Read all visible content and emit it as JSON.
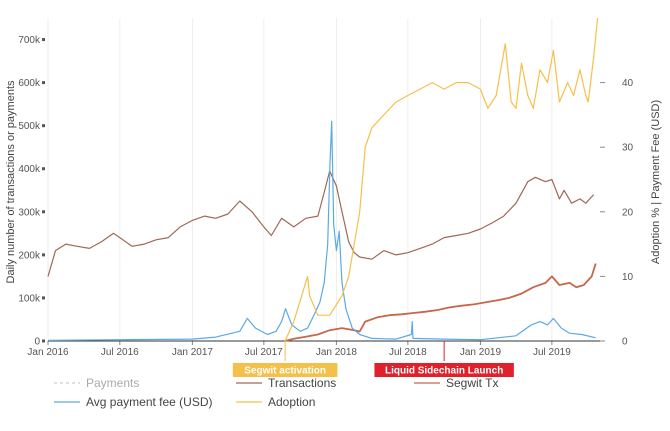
{
  "chart_data": {
    "type": "line",
    "y_left_label": "Daily number of transactions or payments",
    "y_right_label": "Adoption % | Payment Fee (USD)",
    "x_ticks": [
      "Jan 2016",
      "Jul 2016",
      "Jan 2017",
      "Jul 2017",
      "Jan 2018",
      "Jul 2018",
      "Jan 2019",
      "Jul 2019"
    ],
    "x_range": [
      "2016-01-01",
      "2019-10-31"
    ],
    "y_left_ticks": [
      "0",
      "100k",
      "200k",
      "300k",
      "400k",
      "500k",
      "600k",
      "700k"
    ],
    "y_left_range": [
      0,
      750000
    ],
    "y_right_ticks": [
      "0",
      "10",
      "20",
      "30",
      "40"
    ],
    "y_right_range": [
      0,
      50
    ],
    "grid": "vertical",
    "legend_position": "bottom",
    "events": [
      {
        "label": "Segwit activation",
        "date": "2017-08-24",
        "color": "#f5c04a"
      },
      {
        "label": "Liquid Sidechain Launch",
        "date": "2018-10-01",
        "color": "#e0202a"
      }
    ],
    "series": [
      {
        "name": "Payments",
        "axis": "left",
        "color": "#cccccc",
        "style": "dashed",
        "visible": false,
        "points": []
      },
      {
        "name": "Transactions",
        "axis": "left",
        "color": "#a06856",
        "points": [
          [
            "2016-01-01",
            150000
          ],
          [
            "2016-01-20",
            210000
          ],
          [
            "2016-02-15",
            225000
          ],
          [
            "2016-03-15",
            220000
          ],
          [
            "2016-04-15",
            215000
          ],
          [
            "2016-05-15",
            230000
          ],
          [
            "2016-06-15",
            250000
          ],
          [
            "2016-07-01",
            240000
          ],
          [
            "2016-08-01",
            220000
          ],
          [
            "2016-09-01",
            225000
          ],
          [
            "2016-10-01",
            235000
          ],
          [
            "2016-11-01",
            240000
          ],
          [
            "2016-12-01",
            265000
          ],
          [
            "2017-01-01",
            280000
          ],
          [
            "2017-02-01",
            290000
          ],
          [
            "2017-03-01",
            285000
          ],
          [
            "2017-04-01",
            295000
          ],
          [
            "2017-05-01",
            325000
          ],
          [
            "2017-06-01",
            300000
          ],
          [
            "2017-07-01",
            265000
          ],
          [
            "2017-07-20",
            245000
          ],
          [
            "2017-08-15",
            285000
          ],
          [
            "2017-09-15",
            265000
          ],
          [
            "2017-10-15",
            285000
          ],
          [
            "2017-11-15",
            290000
          ],
          [
            "2017-12-01",
            345000
          ],
          [
            "2017-12-15",
            395000
          ],
          [
            "2018-01-01",
            360000
          ],
          [
            "2018-01-15",
            300000
          ],
          [
            "2018-02-01",
            230000
          ],
          [
            "2018-02-15",
            205000
          ],
          [
            "2018-03-01",
            195000
          ],
          [
            "2018-04-01",
            190000
          ],
          [
            "2018-05-01",
            210000
          ],
          [
            "2018-06-01",
            200000
          ],
          [
            "2018-07-01",
            205000
          ],
          [
            "2018-08-01",
            215000
          ],
          [
            "2018-09-01",
            225000
          ],
          [
            "2018-10-01",
            240000
          ],
          [
            "2018-11-01",
            245000
          ],
          [
            "2018-12-01",
            250000
          ],
          [
            "2019-01-01",
            260000
          ],
          [
            "2019-02-01",
            275000
          ],
          [
            "2019-03-01",
            290000
          ],
          [
            "2019-04-01",
            320000
          ],
          [
            "2019-05-01",
            370000
          ],
          [
            "2019-05-20",
            380000
          ],
          [
            "2019-06-15",
            370000
          ],
          [
            "2019-07-01",
            375000
          ],
          [
            "2019-07-20",
            330000
          ],
          [
            "2019-08-01",
            350000
          ],
          [
            "2019-08-20",
            320000
          ],
          [
            "2019-09-10",
            330000
          ],
          [
            "2019-09-25",
            320000
          ],
          [
            "2019-10-15",
            340000
          ]
        ]
      },
      {
        "name": "Segwit Tx",
        "axis": "left",
        "color": "#c6674a",
        "points": [
          [
            "2017-08-24",
            0
          ],
          [
            "2017-09-15",
            5000
          ],
          [
            "2017-10-15",
            10000
          ],
          [
            "2017-11-15",
            15000
          ],
          [
            "2017-12-15",
            25000
          ],
          [
            "2018-01-15",
            30000
          ],
          [
            "2018-02-15",
            25000
          ],
          [
            "2018-03-01",
            22000
          ],
          [
            "2018-03-15",
            45000
          ],
          [
            "2018-04-15",
            55000
          ],
          [
            "2018-05-15",
            60000
          ],
          [
            "2018-06-15",
            62000
          ],
          [
            "2018-07-15",
            65000
          ],
          [
            "2018-08-15",
            68000
          ],
          [
            "2018-09-15",
            72000
          ],
          [
            "2018-10-15",
            78000
          ],
          [
            "2018-11-15",
            82000
          ],
          [
            "2018-12-15",
            85000
          ],
          [
            "2019-01-15",
            90000
          ],
          [
            "2019-02-15",
            95000
          ],
          [
            "2019-03-15",
            100000
          ],
          [
            "2019-04-15",
            110000
          ],
          [
            "2019-05-15",
            125000
          ],
          [
            "2019-06-15",
            135000
          ],
          [
            "2019-07-01",
            150000
          ],
          [
            "2019-07-20",
            130000
          ],
          [
            "2019-08-15",
            135000
          ],
          [
            "2019-09-01",
            125000
          ],
          [
            "2019-09-20",
            130000
          ],
          [
            "2019-10-10",
            150000
          ],
          [
            "2019-10-20",
            180000
          ]
        ]
      },
      {
        "name": "Avg payment fee (USD)",
        "axis": "right",
        "color": "#5aaae6",
        "points": [
          [
            "2016-01-01",
            0.1
          ],
          [
            "2016-07-01",
            0.2
          ],
          [
            "2017-01-01",
            0.3
          ],
          [
            "2017-03-01",
            0.6
          ],
          [
            "2017-05-01",
            1.5
          ],
          [
            "2017-05-20",
            3.5
          ],
          [
            "2017-06-10",
            2.0
          ],
          [
            "2017-07-10",
            1.0
          ],
          [
            "2017-08-01",
            1.5
          ],
          [
            "2017-08-15",
            3.0
          ],
          [
            "2017-08-25",
            5.0
          ],
          [
            "2017-09-10",
            2.5
          ],
          [
            "2017-10-01",
            1.5
          ],
          [
            "2017-10-20",
            2.0
          ],
          [
            "2017-11-05",
            4.0
          ],
          [
            "2017-11-20",
            6.0
          ],
          [
            "2017-12-01",
            9.0
          ],
          [
            "2017-12-10",
            15.0
          ],
          [
            "2017-12-16",
            28.0
          ],
          [
            "2017-12-20",
            34.0
          ],
          [
            "2017-12-25",
            18.0
          ],
          [
            "2018-01-01",
            14.0
          ],
          [
            "2018-01-08",
            17.0
          ],
          [
            "2018-01-15",
            9.0
          ],
          [
            "2018-01-25",
            5.0
          ],
          [
            "2018-02-10",
            2.0
          ],
          [
            "2018-03-01",
            1.0
          ],
          [
            "2018-04-01",
            0.4
          ],
          [
            "2018-06-01",
            0.3
          ],
          [
            "2018-07-10",
            1.0
          ],
          [
            "2018-07-12",
            3.0
          ],
          [
            "2018-07-14",
            0.4
          ],
          [
            "2018-10-01",
            0.3
          ],
          [
            "2019-01-01",
            0.2
          ],
          [
            "2019-04-01",
            0.8
          ],
          [
            "2019-05-10",
            2.5
          ],
          [
            "2019-06-01",
            3.0
          ],
          [
            "2019-06-20",
            2.5
          ],
          [
            "2019-07-05",
            3.5
          ],
          [
            "2019-07-25",
            2.0
          ],
          [
            "2019-08-15",
            1.2
          ],
          [
            "2019-09-15",
            1.0
          ],
          [
            "2019-10-20",
            0.5
          ]
        ]
      },
      {
        "name": "Adoption",
        "axis": "right",
        "color": "#f5c04a",
        "points": [
          [
            "2017-08-24",
            0
          ],
          [
            "2017-09-15",
            3
          ],
          [
            "2017-10-20",
            10
          ],
          [
            "2017-10-25",
            7
          ],
          [
            "2017-11-15",
            4
          ],
          [
            "2017-12-15",
            4
          ],
          [
            "2018-01-15",
            7
          ],
          [
            "2018-02-01",
            10
          ],
          [
            "2018-02-15",
            15
          ],
          [
            "2018-03-01",
            20
          ],
          [
            "2018-03-15",
            30
          ],
          [
            "2018-04-01",
            33
          ],
          [
            "2018-05-01",
            35
          ],
          [
            "2018-06-01",
            37
          ],
          [
            "2018-07-01",
            38
          ],
          [
            "2018-08-01",
            39
          ],
          [
            "2018-09-01",
            40
          ],
          [
            "2018-10-01",
            39
          ],
          [
            "2018-11-01",
            40
          ],
          [
            "2018-12-01",
            40
          ],
          [
            "2019-01-01",
            39
          ],
          [
            "2019-01-20",
            36
          ],
          [
            "2019-02-10",
            38
          ],
          [
            "2019-03-05",
            46
          ],
          [
            "2019-03-20",
            37
          ],
          [
            "2019-04-01",
            36
          ],
          [
            "2019-04-15",
            43
          ],
          [
            "2019-05-01",
            38
          ],
          [
            "2019-05-15",
            36
          ],
          [
            "2019-06-01",
            42
          ],
          [
            "2019-06-20",
            40
          ],
          [
            "2019-07-05",
            45
          ],
          [
            "2019-07-20",
            37
          ],
          [
            "2019-08-10",
            40
          ],
          [
            "2019-08-25",
            38
          ],
          [
            "2019-09-10",
            42
          ],
          [
            "2019-09-25",
            38
          ],
          [
            "2019-10-01",
            37
          ],
          [
            "2019-10-15",
            44
          ],
          [
            "2019-10-25",
            50
          ]
        ]
      }
    ]
  },
  "legend": [
    {
      "label": "Payments",
      "color": "#cccccc",
      "style": "dashed",
      "muted": true
    },
    {
      "label": "Transactions",
      "color": "#a06856",
      "style": "solid",
      "muted": false
    },
    {
      "label": "Segwit Tx",
      "color": "#c6674a",
      "style": "solid",
      "muted": false
    },
    {
      "label": "Avg payment fee (USD)",
      "color": "#5aaae6",
      "style": "solid",
      "muted": false
    },
    {
      "label": "Adoption",
      "color": "#f5c04a",
      "style": "solid",
      "muted": false
    }
  ]
}
